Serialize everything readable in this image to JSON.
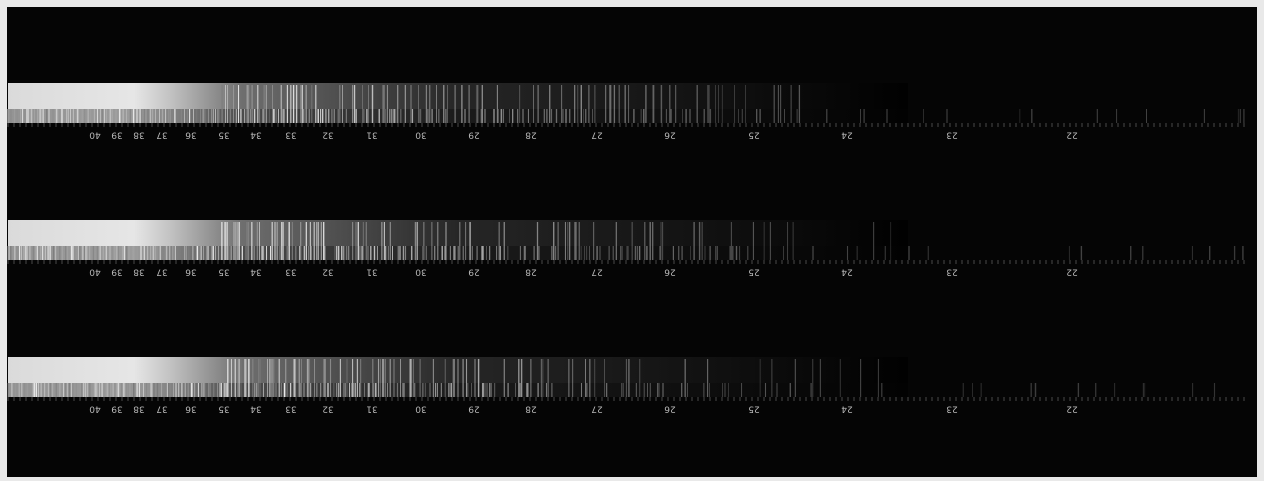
{
  "plate": {
    "strip_count": 3,
    "scale_labels": [
      "40",
      "39",
      "38",
      "37",
      "36",
      "35",
      "34",
      "33",
      "32",
      "31",
      "30",
      "29",
      "28",
      "27",
      "26",
      "25",
      "24",
      "23",
      "22"
    ]
  }
}
